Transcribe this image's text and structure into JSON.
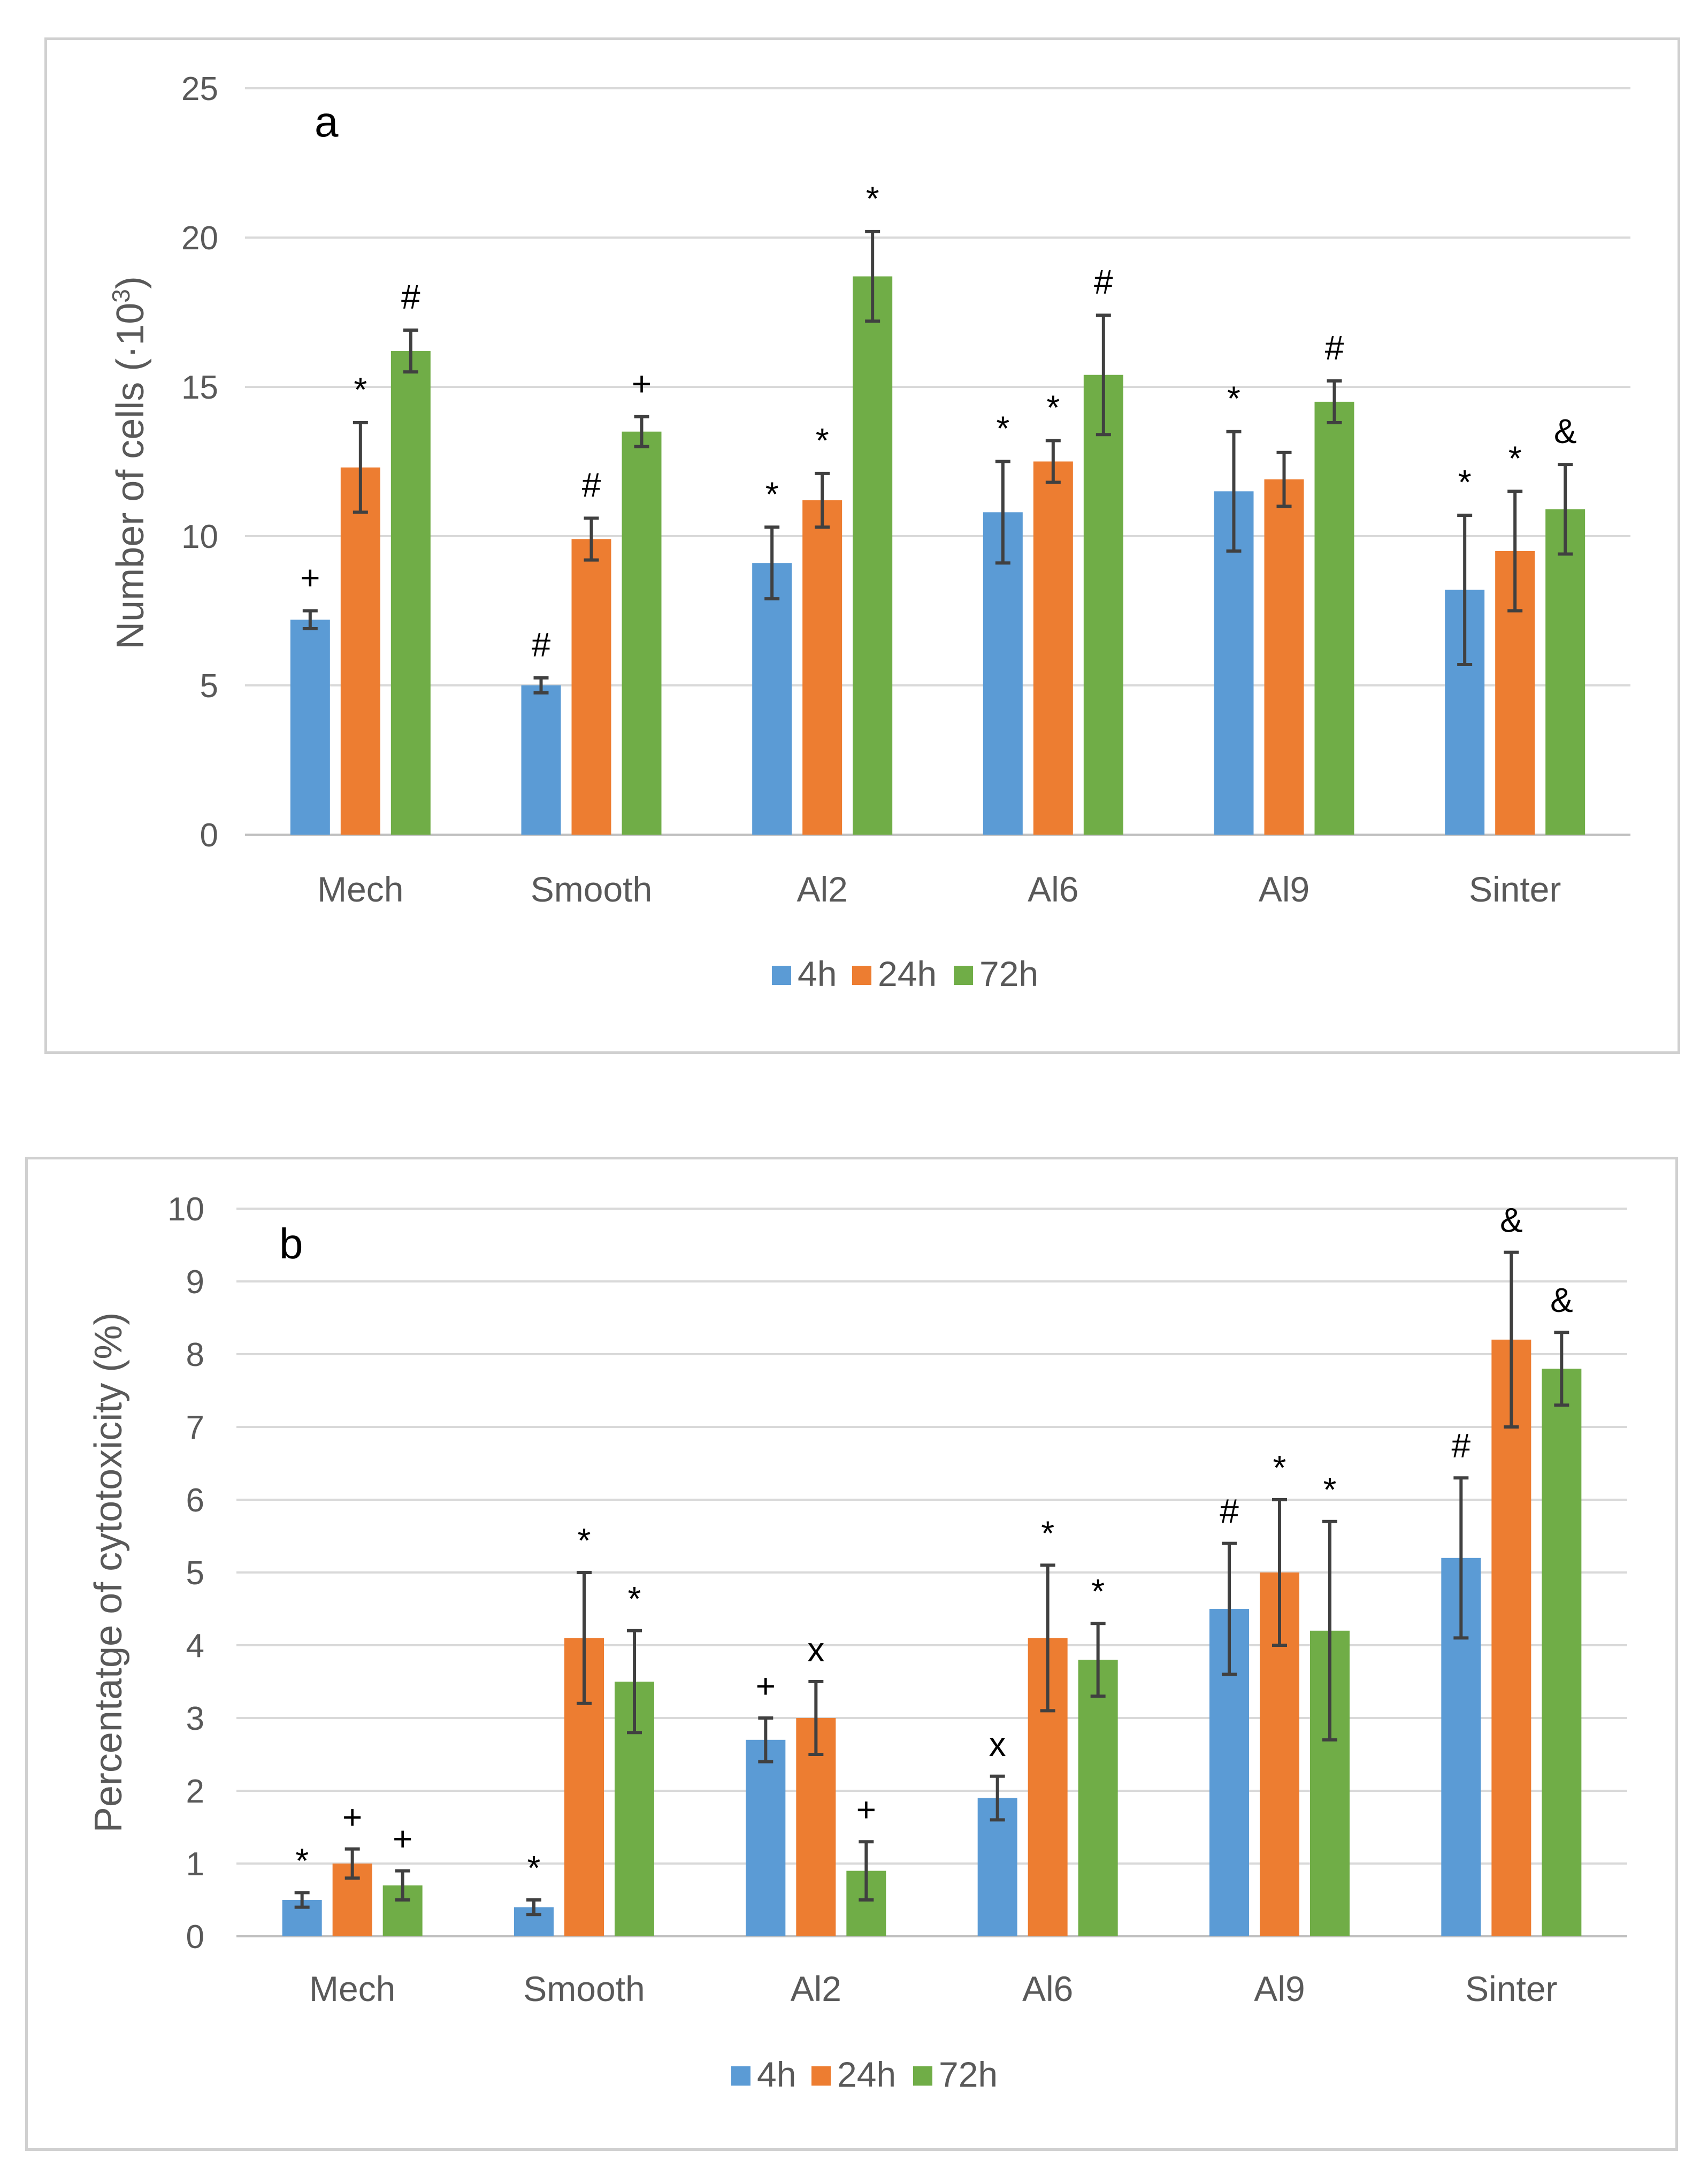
{
  "colors": {
    "4h": "#5b9bd5",
    "24h": "#ed7d31",
    "72h": "#70ad47",
    "grid": "#d9d9d9",
    "axis": "#bfbfbf",
    "error": "#404040"
  },
  "chart_data": [
    {
      "type": "bar",
      "panel_label": "a",
      "title": "",
      "xlabel": "",
      "ylabel": "Number of cells (·10",
      "ylabel_superscript": "3",
      "ylabel_close": ")",
      "ylim": [
        0,
        25
      ],
      "yticks": [
        0,
        5,
        10,
        15,
        20,
        25
      ],
      "grid": true,
      "legend_position": "bottom",
      "categories": [
        "Mech",
        "Smooth",
        "Al2",
        "Al6",
        "Al9",
        "Sinter"
      ],
      "series": [
        {
          "name": "4h",
          "values": [
            7.2,
            5.0,
            9.1,
            10.8,
            11.5,
            8.2
          ],
          "errors": [
            0.3,
            0.25,
            1.2,
            1.7,
            2.0,
            2.5
          ],
          "markers": [
            "+",
            "#",
            "*",
            "*",
            "*",
            "*"
          ]
        },
        {
          "name": "24h",
          "values": [
            12.3,
            9.9,
            11.2,
            12.5,
            11.9,
            9.5
          ],
          "errors": [
            1.5,
            0.7,
            0.9,
            0.7,
            0.9,
            2.0
          ],
          "markers": [
            "*",
            "#",
            "*",
            "*",
            "",
            "*"
          ]
        },
        {
          "name": "72h",
          "values": [
            16.2,
            13.5,
            18.7,
            15.4,
            14.5,
            10.9
          ],
          "errors": [
            0.7,
            0.5,
            1.5,
            2.0,
            0.7,
            1.5
          ],
          "markers": [
            "#",
            "+",
            "*",
            "#",
            "#",
            "&"
          ]
        }
      ]
    },
    {
      "type": "bar",
      "panel_label": "b",
      "title": "",
      "xlabel": "",
      "ylabel": "Percentatge of cytotoxicity (%)",
      "ylim": [
        0,
        10
      ],
      "yticks": [
        0,
        1,
        2,
        3,
        4,
        5,
        6,
        7,
        8,
        9,
        10
      ],
      "grid": true,
      "legend_position": "bottom",
      "categories": [
        "Mech",
        "Smooth",
        "Al2",
        "Al6",
        "Al9",
        "Sinter"
      ],
      "series": [
        {
          "name": "4h",
          "values": [
            0.5,
            0.4,
            2.7,
            1.9,
            4.5,
            5.2
          ],
          "errors": [
            0.1,
            0.1,
            0.3,
            0.3,
            0.9,
            1.1
          ],
          "markers": [
            "*",
            "*",
            "+",
            "x",
            "#",
            "#"
          ]
        },
        {
          "name": "24h",
          "values": [
            1.0,
            4.1,
            3.0,
            4.1,
            5.0,
            8.2
          ],
          "errors": [
            0.2,
            0.9,
            0.5,
            1.0,
            1.0,
            1.2
          ],
          "markers": [
            "+",
            "*",
            "x",
            "*",
            "*",
            "&"
          ]
        },
        {
          "name": "72h",
          "values": [
            0.7,
            3.5,
            0.9,
            3.8,
            4.2,
            7.8
          ],
          "errors": [
            0.2,
            0.7,
            0.4,
            0.5,
            1.5,
            0.5
          ],
          "markers": [
            "+",
            "*",
            "+",
            "*",
            "*",
            "&"
          ]
        }
      ]
    }
  ]
}
